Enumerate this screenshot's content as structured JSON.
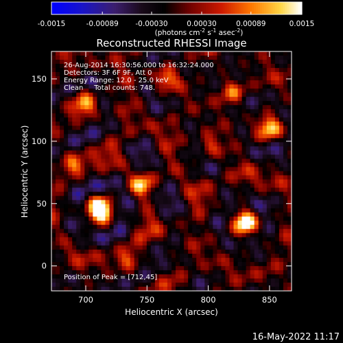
{
  "colorbar": {
    "ticks": [
      "-0.0015",
      "-0.00089",
      "-0.00030",
      "0.00030",
      "0.00089",
      "0.0015"
    ],
    "tick_values": [
      -0.0015,
      -0.00089,
      -0.0003,
      0.0003,
      0.00089,
      0.0015
    ],
    "range": [
      -0.0015,
      0.0015
    ],
    "units_main": "(photons cm",
    "units_sup1": "-2",
    "units_mid": " s",
    "units_sup2": "-1",
    "units_end": " asec",
    "units_sup3": "-2",
    "units_close": ")"
  },
  "chart_data": {
    "type": "heatmap",
    "title": "Reconstructed RHESSI Image",
    "xlabel": "Heliocentric X (arcsec)",
    "ylabel": "Heliocentric Y (arcsec)",
    "xlim": [
      672,
      868
    ],
    "ylim": [
      -20,
      172
    ],
    "x_ticks": [
      700,
      750,
      800,
      850
    ],
    "y_ticks": [
      0,
      50,
      100,
      150
    ],
    "grid": false,
    "annotations": [
      "26-Aug-2014 16:30:56.000 to 16:32:24.000",
      "Detectors: 3F 6F 9F, Att 0",
      "Energy Range: 12.0 - 25.0 keV",
      "Clean     Total counts: 748.",
      "Position of Peak = [712,45]"
    ],
    "peak": [
      712,
      45
    ],
    "blobs": [
      {
        "x": 712,
        "y": 45,
        "amp": 0.95
      },
      {
        "x": 830,
        "y": 35,
        "amp": 0.85
      },
      {
        "x": 745,
        "y": 65,
        "amp": 0.55
      },
      {
        "x": 765,
        "y": 150,
        "amp": 0.55
      },
      {
        "x": 700,
        "y": 130,
        "amp": 0.5
      },
      {
        "x": 850,
        "y": 110,
        "amp": 0.55
      },
      {
        "x": 800,
        "y": 95,
        "amp": 0.45
      },
      {
        "x": 690,
        "y": 80,
        "amp": 0.4
      },
      {
        "x": 735,
        "y": 5,
        "amp": 0.35
      },
      {
        "x": 820,
        "y": 140,
        "amp": 0.4
      }
    ]
  },
  "footer": {
    "date": "16-May-2022 11:17"
  },
  "colors": {
    "background": "#000000",
    "text": "#ffffff"
  }
}
